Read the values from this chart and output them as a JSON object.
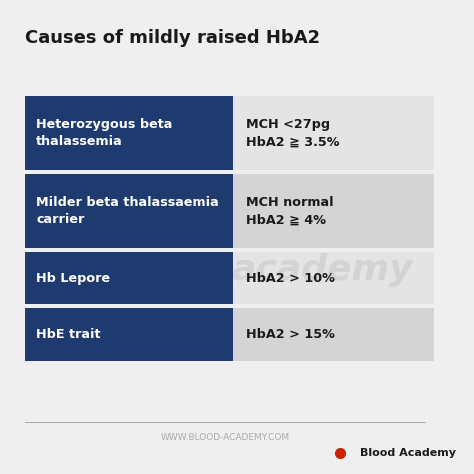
{
  "title": "Causes of mildly raised HbA2",
  "background_color": "#efefef",
  "title_color": "#1a1a1a",
  "title_fontsize": 13,
  "blue_color": "#1e3a6e",
  "text_white": "#ffffff",
  "text_dark": "#1a1a1a",
  "rows": [
    {
      "left_text": "Heterozygous beta\nthalassemia",
      "right_text": "MCH <27pg\nHbA2 ≧ 3.5%",
      "bg_shade": "#e4e4e4"
    },
    {
      "left_text": "Milder beta thalassaemia\ncarrier",
      "right_text": "MCH normal\nHbA2 ≧ 4%",
      "bg_shade": "#d4d4d4"
    },
    {
      "left_text": "Hb Lepore",
      "right_text": "HbA2 > 10%",
      "bg_shade": "#e4e4e4"
    },
    {
      "left_text": "HbE trait",
      "right_text": "HbA2 > 15%",
      "bg_shade": "#d4d4d4"
    }
  ],
  "footer_text": "WWW.BLOOD-ACADEMY.COM",
  "brand_text": "Blood Academy",
  "droplet_color": "#cc2200",
  "watermark_text": "academy"
}
